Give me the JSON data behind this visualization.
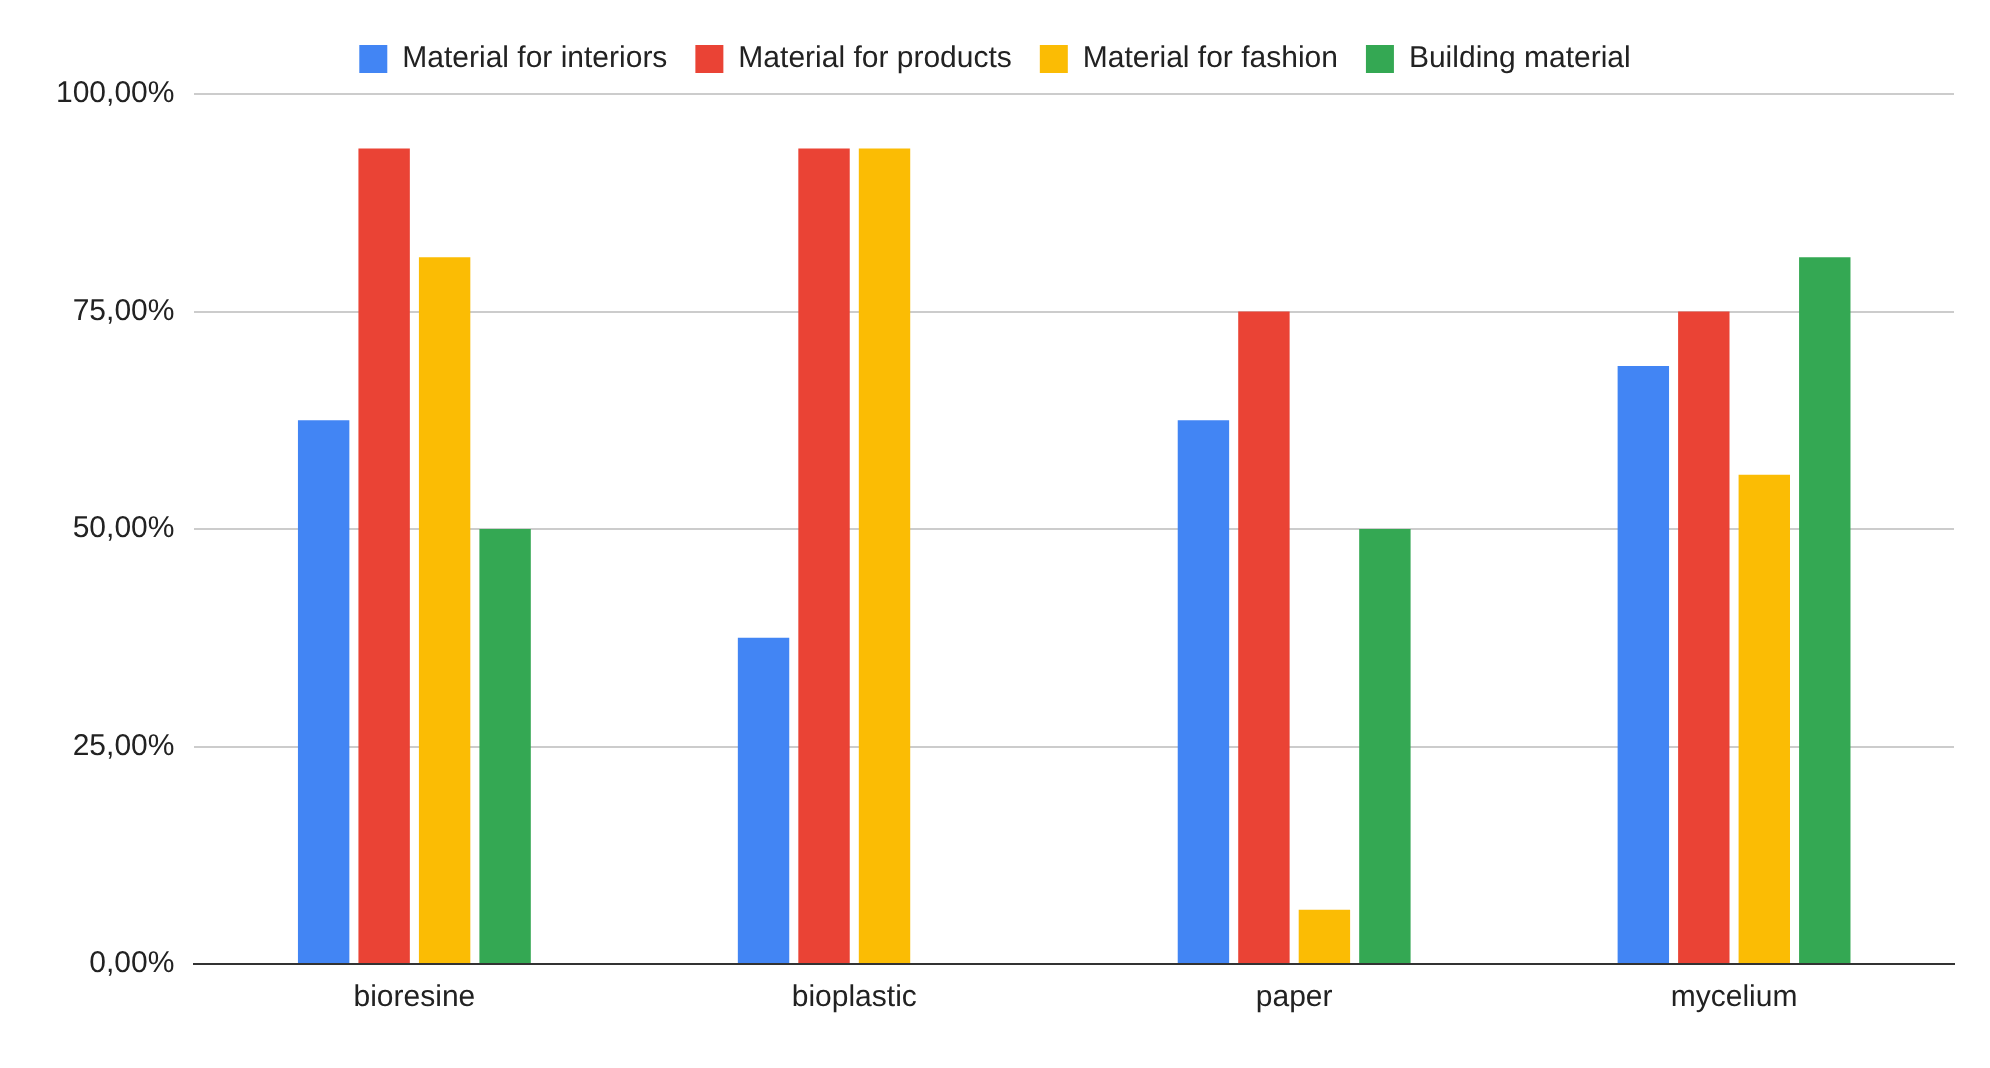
{
  "chart_data": {
    "type": "bar",
    "categories": [
      "bioresine",
      "bioplastic",
      "paper",
      "mycelium"
    ],
    "series": [
      {
        "name": "Material for interiors",
        "color": "#4285f4",
        "values": [
          62.5,
          37.5,
          62.5,
          68.75
        ]
      },
      {
        "name": "Material for products",
        "color": "#ea4335",
        "values": [
          93.75,
          93.75,
          75,
          75
        ]
      },
      {
        "name": "Material for fashion",
        "color": "#fbbc04",
        "values": [
          81.25,
          93.75,
          6.25,
          56.25
        ]
      },
      {
        "name": "Building material",
        "color": "#34a853",
        "values": [
          50,
          0,
          50,
          81.25
        ]
      }
    ],
    "ylim": [
      0,
      100
    ],
    "yticks": [
      {
        "value": 0,
        "label": "0,00%"
      },
      {
        "value": 25,
        "label": "25,00%"
      },
      {
        "value": 50,
        "label": "50,00%"
      },
      {
        "value": 75,
        "label": "75,00%"
      },
      {
        "value": 100,
        "label": "100,00%"
      }
    ],
    "grid": "y",
    "legend": "top"
  }
}
